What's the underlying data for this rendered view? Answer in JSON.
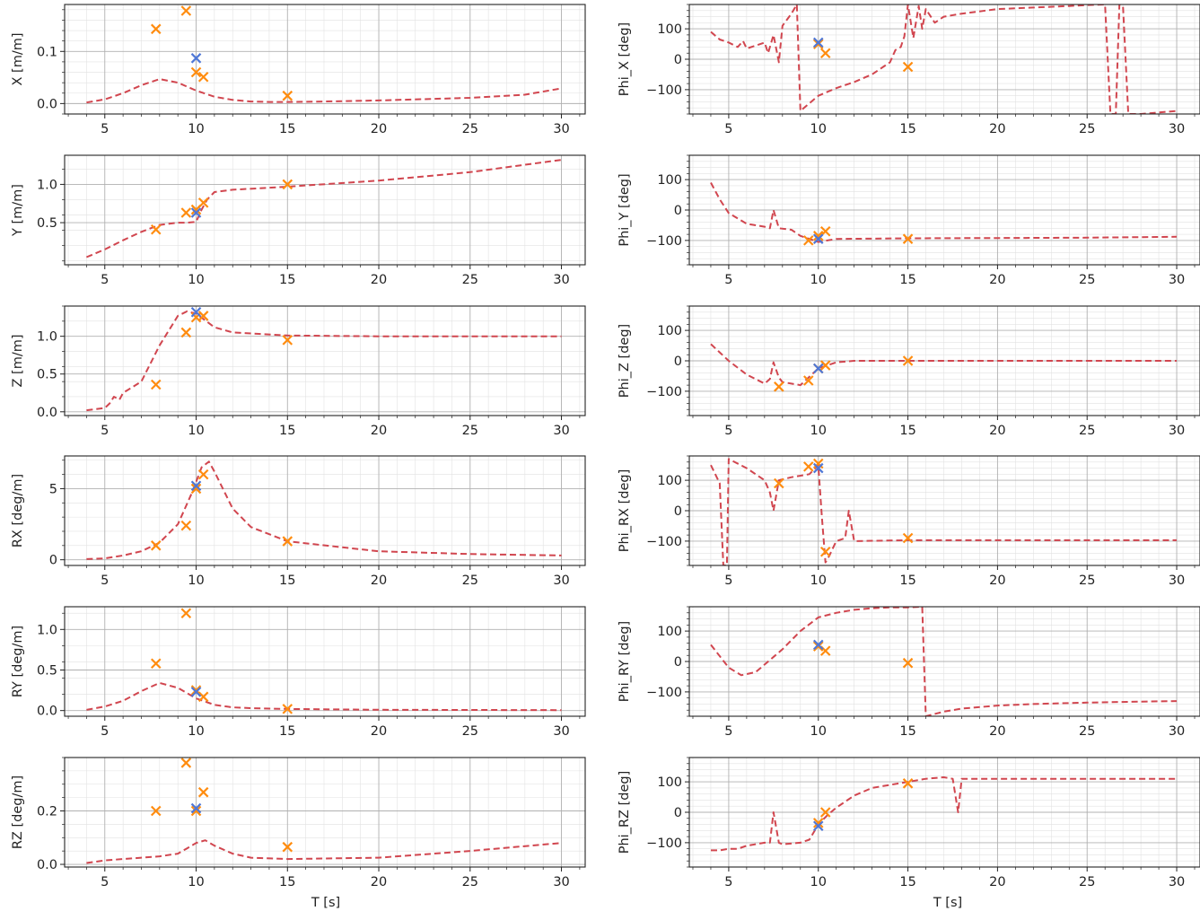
{
  "figure": {
    "xlabel": "T [s]"
  },
  "colors": {
    "line": "#d1464f",
    "marker_orange": "#ff8c0f",
    "marker_blue": "#4f77d6"
  },
  "chart_data": [
    {
      "id": "X",
      "type": "line",
      "ylabel": "X [m/m]",
      "xlim": [
        2.8,
        31.3
      ],
      "ylim": [
        -0.02,
        0.19
      ],
      "xticks": [
        5,
        10,
        15,
        20,
        25,
        30
      ],
      "yticks": [
        0.0,
        0.1
      ],
      "ytick_labels": [
        "0.0",
        "0.1"
      ],
      "series": [
        {
          "style": "dashed",
          "x": [
            4,
            5,
            6,
            7,
            8,
            9,
            10,
            11,
            12,
            13,
            14,
            15,
            17,
            20,
            25,
            28,
            30
          ],
          "y": [
            0.002,
            0.008,
            0.02,
            0.035,
            0.047,
            0.04,
            0.025,
            0.013,
            0.007,
            0.004,
            0.003,
            0.003,
            0.004,
            0.006,
            0.011,
            0.017,
            0.029
          ]
        }
      ],
      "markers": [
        {
          "color": "orange",
          "x": [
            7.8,
            9.45,
            10,
            10.4,
            15
          ],
          "y": [
            0.143,
            0.178,
            0.06,
            0.051,
            0.015
          ]
        },
        {
          "color": "blue",
          "x": [
            10
          ],
          "y": [
            0.087
          ]
        }
      ]
    },
    {
      "id": "Phi_X",
      "type": "line",
      "ylabel": "Phi_X [deg]",
      "xlim": [
        2.8,
        31.3
      ],
      "ylim": [
        -180,
        180
      ],
      "xticks": [
        5,
        10,
        15,
        20,
        25,
        30
      ],
      "yticks": [
        -100,
        0,
        100
      ],
      "ytick_labels": [
        "−100",
        "0",
        "100"
      ],
      "series": [
        {
          "style": "dashed",
          "x": [
            4,
            4.5,
            5,
            5.5,
            5.8,
            6,
            6.5,
            7,
            7.2,
            7.5,
            7.8,
            8,
            8.5,
            8.8,
            9,
            10,
            11,
            12,
            13,
            14,
            14.3,
            14.6,
            14.8,
            15,
            15.3,
            15.6,
            15.8,
            16,
            16.5,
            17,
            18,
            20,
            22,
            24,
            25,
            26,
            26.3,
            26.6,
            26.8,
            27,
            27.3,
            27.6,
            28,
            30
          ],
          "y": [
            90,
            65,
            55,
            40,
            60,
            35,
            45,
            55,
            20,
            80,
            -10,
            110,
            150,
            180,
            -170,
            -120,
            -95,
            -75,
            -50,
            -10,
            30,
            40,
            75,
            180,
            70,
            175,
            100,
            165,
            120,
            140,
            150,
            165,
            170,
            175,
            178,
            180,
            -180,
            -180,
            180,
            175,
            -180,
            -180,
            -180,
            -170
          ]
        }
      ],
      "markers": [
        {
          "color": "orange",
          "x": [
            10,
            10.4,
            15
          ],
          "y": [
            50,
            20,
            -25
          ]
        },
        {
          "color": "blue",
          "x": [
            10
          ],
          "y": [
            55
          ]
        }
      ]
    },
    {
      "id": "Y",
      "type": "line",
      "ylabel": "Y [m/m]",
      "xlim": [
        2.8,
        31.3
      ],
      "ylim": [
        -0.05,
        1.38
      ],
      "xticks": [
        5,
        10,
        15,
        20,
        25,
        30
      ],
      "yticks": [
        0.5,
        1.0
      ],
      "ytick_labels": [
        "0.5",
        "1.0"
      ],
      "series": [
        {
          "style": "dashed",
          "x": [
            4,
            5,
            6,
            7,
            8,
            9,
            9.5,
            10,
            10.3,
            10.6,
            11,
            12,
            15,
            20,
            25,
            30
          ],
          "y": [
            0.05,
            0.15,
            0.27,
            0.38,
            0.47,
            0.5,
            0.5,
            0.51,
            0.67,
            0.8,
            0.9,
            0.93,
            0.97,
            1.05,
            1.16,
            1.32
          ]
        }
      ],
      "markers": [
        {
          "color": "orange",
          "x": [
            7.8,
            9.45,
            10,
            10.4,
            15
          ],
          "y": [
            0.41,
            0.63,
            0.67,
            0.76,
            1.0
          ]
        },
        {
          "color": "blue",
          "x": [
            10
          ],
          "y": [
            0.63
          ]
        }
      ]
    },
    {
      "id": "Phi_Y",
      "type": "line",
      "ylabel": "Phi_Y [deg]",
      "xlim": [
        2.8,
        31.3
      ],
      "ylim": [
        -180,
        180
      ],
      "xticks": [
        5,
        10,
        15,
        20,
        25,
        30
      ],
      "yticks": [
        -100,
        0,
        100
      ],
      "ytick_labels": [
        "−100",
        "0",
        "100"
      ],
      "series": [
        {
          "style": "dashed",
          "x": [
            4,
            4.5,
            5,
            6,
            7,
            7.3,
            7.5,
            7.8,
            8.5,
            9,
            10,
            11,
            15,
            20,
            25,
            30
          ],
          "y": [
            90,
            35,
            -10,
            -45,
            -55,
            -60,
            0,
            -60,
            -65,
            -85,
            -105,
            -95,
            -93,
            -92,
            -91,
            -88
          ]
        }
      ],
      "markers": [
        {
          "color": "orange",
          "x": [
            9.45,
            10,
            10.4,
            15
          ],
          "y": [
            -100,
            -85,
            -70,
            -95
          ]
        },
        {
          "color": "blue",
          "x": [
            10
          ],
          "y": [
            -95
          ]
        }
      ]
    },
    {
      "id": "Z",
      "type": "line",
      "ylabel": "Z [m/m]",
      "xlim": [
        2.8,
        31.3
      ],
      "ylim": [
        -0.05,
        1.4
      ],
      "xticks": [
        5,
        10,
        15,
        20,
        25,
        30
      ],
      "yticks": [
        0.0,
        0.5,
        1.0
      ],
      "ytick_labels": [
        "0.0",
        "0.5",
        "1.0"
      ],
      "series": [
        {
          "style": "dashed",
          "x": [
            4,
            5,
            5.3,
            5.5,
            5.8,
            6,
            7,
            8,
            9,
            9.5,
            10,
            11,
            12,
            15,
            20,
            30
          ],
          "y": [
            0.02,
            0.05,
            0.12,
            0.2,
            0.16,
            0.25,
            0.4,
            0.88,
            1.27,
            1.33,
            1.3,
            1.12,
            1.05,
            1.01,
            1.0,
            1.0
          ]
        }
      ],
      "markers": [
        {
          "color": "orange",
          "x": [
            7.8,
            9.45,
            10,
            10.4,
            15
          ],
          "y": [
            0.36,
            1.05,
            1.25,
            1.27,
            0.95
          ]
        },
        {
          "color": "blue",
          "x": [
            10
          ],
          "y": [
            1.32
          ]
        }
      ]
    },
    {
      "id": "Phi_Z",
      "type": "line",
      "ylabel": "Phi_Z [deg]",
      "xlim": [
        2.8,
        31.3
      ],
      "ylim": [
        -180,
        180
      ],
      "xticks": [
        5,
        10,
        15,
        20,
        25,
        30
      ],
      "yticks": [
        -100,
        0,
        100
      ],
      "ytick_labels": [
        "−100",
        "0",
        "100"
      ],
      "series": [
        {
          "style": "dashed",
          "x": [
            4,
            5,
            6,
            7,
            7.3,
            7.5,
            7.8,
            8,
            9,
            10,
            11,
            12,
            15,
            20,
            25,
            30
          ],
          "y": [
            55,
            0,
            -45,
            -75,
            -60,
            -5,
            -55,
            -70,
            -80,
            -25,
            -5,
            0,
            0,
            0,
            0,
            0
          ]
        }
      ],
      "markers": [
        {
          "color": "orange",
          "x": [
            7.8,
            9.45,
            10,
            10.4,
            15
          ],
          "y": [
            -85,
            -65,
            -25,
            -15,
            0
          ]
        },
        {
          "color": "blue",
          "x": [
            10
          ],
          "y": [
            -25
          ]
        }
      ]
    },
    {
      "id": "RX",
      "type": "line",
      "ylabel": "RX [deg/m]",
      "xlim": [
        2.8,
        31.3
      ],
      "ylim": [
        -0.4,
        7.3
      ],
      "xticks": [
        5,
        10,
        15,
        20,
        25,
        30
      ],
      "yticks": [
        0,
        5
      ],
      "ytick_labels": [
        "0",
        "5"
      ],
      "series": [
        {
          "style": "dashed",
          "x": [
            4,
            5,
            6,
            7,
            8,
            9,
            9.8,
            10.3,
            10.7,
            11,
            12,
            13,
            15,
            20,
            25,
            30
          ],
          "y": [
            0.05,
            0.1,
            0.3,
            0.6,
            1.2,
            2.5,
            4.8,
            6.5,
            6.9,
            6.2,
            3.6,
            2.3,
            1.3,
            0.6,
            0.4,
            0.3
          ]
        }
      ],
      "markers": [
        {
          "color": "orange",
          "x": [
            7.8,
            9.45,
            10,
            10.4,
            15
          ],
          "y": [
            1.0,
            2.4,
            5.0,
            6.0,
            1.3
          ]
        },
        {
          "color": "blue",
          "x": [
            10
          ],
          "y": [
            5.2
          ]
        }
      ]
    },
    {
      "id": "Phi_RX",
      "type": "line",
      "ylabel": "Phi_RX [deg]",
      "xlim": [
        2.8,
        31.3
      ],
      "ylim": [
        -180,
        180
      ],
      "xticks": [
        5,
        10,
        15,
        20,
        25,
        30
      ],
      "yticks": [
        -100,
        0,
        100
      ],
      "ytick_labels": [
        "−100",
        "0",
        "100"
      ],
      "series": [
        {
          "style": "dashed",
          "x": [
            4,
            4.5,
            4.7,
            4.9,
            5,
            6,
            7,
            7.3,
            7.5,
            7.8,
            8.5,
            9.5,
            10,
            10.2,
            10.4,
            10.6,
            11,
            11.5,
            11.7,
            12,
            15,
            20,
            30
          ],
          "y": [
            150,
            90,
            -180,
            -180,
            170,
            140,
            100,
            60,
            0,
            100,
            110,
            120,
            150,
            -20,
            -170,
            -150,
            -100,
            -90,
            0,
            -100,
            -97,
            -97,
            -97
          ]
        }
      ],
      "markers": [
        {
          "color": "orange",
          "x": [
            7.8,
            9.45,
            10,
            10.4,
            15
          ],
          "y": [
            90,
            145,
            155,
            -135,
            -90
          ]
        },
        {
          "color": "blue",
          "x": [
            10
          ],
          "y": [
            140
          ]
        }
      ]
    },
    {
      "id": "RY",
      "type": "line",
      "ylabel": "RY [deg/m]",
      "xlim": [
        2.8,
        31.3
      ],
      "ylim": [
        -0.07,
        1.28
      ],
      "xticks": [
        5,
        10,
        15,
        20,
        25,
        30
      ],
      "yticks": [
        0.0,
        0.5,
        1.0
      ],
      "ytick_labels": [
        "0.0",
        "0.5",
        "1.0"
      ],
      "series": [
        {
          "style": "dashed",
          "x": [
            4,
            5,
            6,
            7,
            8,
            9,
            10,
            11,
            12,
            13,
            15,
            20,
            30
          ],
          "y": [
            0.01,
            0.05,
            0.12,
            0.24,
            0.34,
            0.28,
            0.15,
            0.07,
            0.04,
            0.03,
            0.02,
            0.01,
            0.005
          ]
        }
      ],
      "markers": [
        {
          "color": "orange",
          "x": [
            7.8,
            9.45,
            10,
            10.4,
            15
          ],
          "y": [
            0.58,
            1.2,
            0.25,
            0.17,
            0.02
          ]
        },
        {
          "color": "blue",
          "x": [
            10
          ],
          "y": [
            0.23
          ]
        }
      ]
    },
    {
      "id": "Phi_RY",
      "type": "line",
      "ylabel": "Phi_RY [deg]",
      "xlim": [
        2.8,
        31.3
      ],
      "ylim": [
        -180,
        180
      ],
      "xticks": [
        5,
        10,
        15,
        20,
        25,
        30
      ],
      "yticks": [
        -100,
        0,
        100
      ],
      "ytick_labels": [
        "−100",
        "0",
        "100"
      ],
      "series": [
        {
          "style": "dashed",
          "x": [
            4,
            5,
            5.7,
            6.5,
            7,
            8,
            9,
            10,
            11,
            12,
            13,
            14,
            15,
            15.8,
            16,
            17,
            18,
            20,
            22,
            25,
            28,
            30
          ],
          "y": [
            55,
            -20,
            -45,
            -35,
            -10,
            40,
            100,
            145,
            160,
            170,
            175,
            178,
            178,
            180,
            -180,
            -165,
            -155,
            -145,
            -140,
            -135,
            -132,
            -130
          ]
        }
      ],
      "markers": [
        {
          "color": "orange",
          "x": [
            10,
            10.4,
            15
          ],
          "y": [
            50,
            35,
            -5
          ]
        },
        {
          "color": "blue",
          "x": [
            10
          ],
          "y": [
            55
          ]
        }
      ]
    },
    {
      "id": "RZ",
      "type": "line",
      "ylabel": "RZ [deg/m]",
      "xlim": [
        2.8,
        31.3
      ],
      "ylim": [
        -0.01,
        0.4
      ],
      "xticks": [
        5,
        10,
        15,
        20,
        25,
        30
      ],
      "yticks": [
        0.0,
        0.2
      ],
      "ytick_labels": [
        "0.0",
        "0.2"
      ],
      "series": [
        {
          "style": "dashed",
          "x": [
            4,
            5,
            6,
            7,
            8,
            9,
            9.5,
            10,
            10.5,
            11,
            12,
            13,
            15,
            20,
            25,
            30
          ],
          "y": [
            0.005,
            0.015,
            0.02,
            0.025,
            0.03,
            0.04,
            0.06,
            0.08,
            0.09,
            0.07,
            0.04,
            0.025,
            0.02,
            0.025,
            0.05,
            0.08
          ]
        }
      ],
      "markers": [
        {
          "color": "orange",
          "x": [
            7.8,
            9.45,
            10,
            10.4,
            15
          ],
          "y": [
            0.2,
            0.38,
            0.2,
            0.27,
            0.065
          ]
        },
        {
          "color": "blue",
          "x": [
            10
          ],
          "y": [
            0.21
          ]
        }
      ]
    },
    {
      "id": "Phi_RZ",
      "type": "line",
      "ylabel": "Phi_RZ [deg]",
      "xlim": [
        2.8,
        31.3
      ],
      "ylim": [
        -180,
        180
      ],
      "xticks": [
        5,
        10,
        15,
        20,
        25,
        30
      ],
      "yticks": [
        -100,
        0,
        100
      ],
      "ytick_labels": [
        "−100",
        "0",
        "100"
      ],
      "series": [
        {
          "style": "dashed",
          "x": [
            4,
            4.5,
            5,
            5.5,
            6,
            7,
            7.3,
            7.5,
            7.8,
            8,
            9,
            9.5,
            10,
            10.5,
            11,
            12,
            13,
            14,
            15,
            16,
            17,
            17.5,
            17.8,
            18,
            20,
            25,
            30
          ],
          "y": [
            -125,
            -125,
            -120,
            -120,
            -110,
            -100,
            -100,
            0,
            -100,
            -105,
            -100,
            -90,
            -40,
            -10,
            15,
            55,
            80,
            90,
            100,
            110,
            115,
            110,
            0,
            110,
            110,
            110,
            110
          ]
        }
      ],
      "markers": [
        {
          "color": "orange",
          "x": [
            10,
            10.4,
            15
          ],
          "y": [
            -35,
            0,
            95
          ]
        },
        {
          "color": "blue",
          "x": [
            10
          ],
          "y": [
            -45
          ]
        }
      ]
    }
  ]
}
